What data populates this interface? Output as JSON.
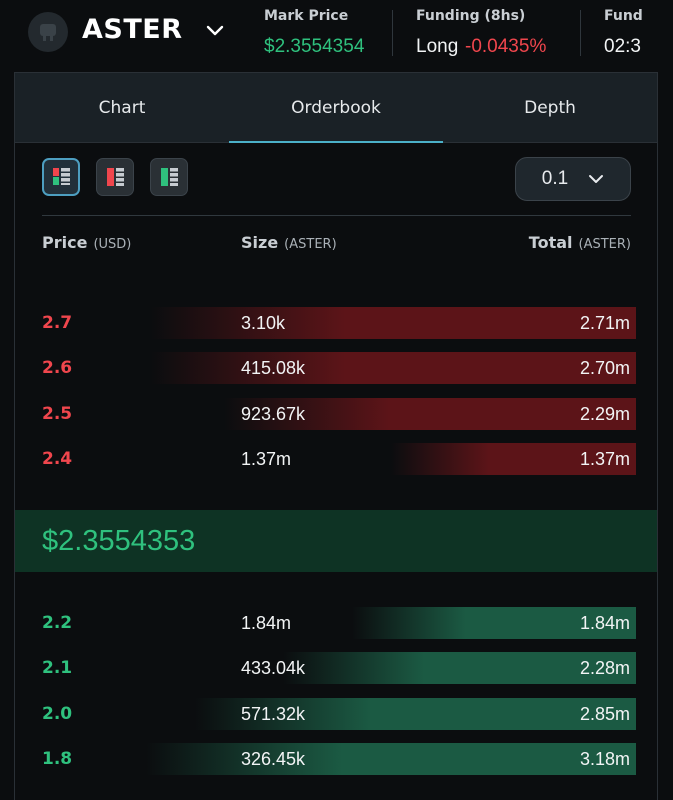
{
  "header": {
    "symbol": "ASTER",
    "mark_price_label": "Mark Price",
    "mark_price": "$2.3554354",
    "funding_label": "Funding (8hs)",
    "funding_side": "Long",
    "funding_rate": "-0.0435%",
    "countdown_label": "Fund",
    "countdown_value": "02:3"
  },
  "tabs": [
    {
      "label": "Chart"
    },
    {
      "label": "Orderbook"
    },
    {
      "label": "Depth"
    }
  ],
  "precision": "0.1",
  "columns": {
    "price": "Price",
    "price_unit": "(USD)",
    "size": "Size",
    "size_unit": "(ASTER)",
    "total": "Total",
    "total_unit": "(ASTER)"
  },
  "asks": [
    {
      "price": "2.7",
      "size": "3.10k",
      "total": "2.71m",
      "depth": 0.99
    },
    {
      "price": "2.6",
      "size": "415.08k",
      "total": "2.70m",
      "depth": 0.99
    },
    {
      "price": "2.5",
      "size": "923.67k",
      "total": "2.29m",
      "depth": 0.84
    },
    {
      "price": "2.4",
      "size": "1.37m",
      "total": "1.37m",
      "depth": 0.5
    }
  ],
  "mid_price": "$2.3554353",
  "bids": [
    {
      "price": "2.2",
      "size": "1.84m",
      "total": "1.84m",
      "depth": 0.58
    },
    {
      "price": "2.1",
      "size": "433.04k",
      "total": "2.28m",
      "depth": 0.72
    },
    {
      "price": "2.0",
      "size": "571.32k",
      "total": "2.85m",
      "depth": 0.9
    },
    {
      "price": "1.8",
      "size": "326.45k",
      "total": "3.18m",
      "depth": 1.0
    }
  ],
  "colors": {
    "ask": "#f0464d",
    "bid": "#2fc17e",
    "accent": "#4bb0c8"
  }
}
